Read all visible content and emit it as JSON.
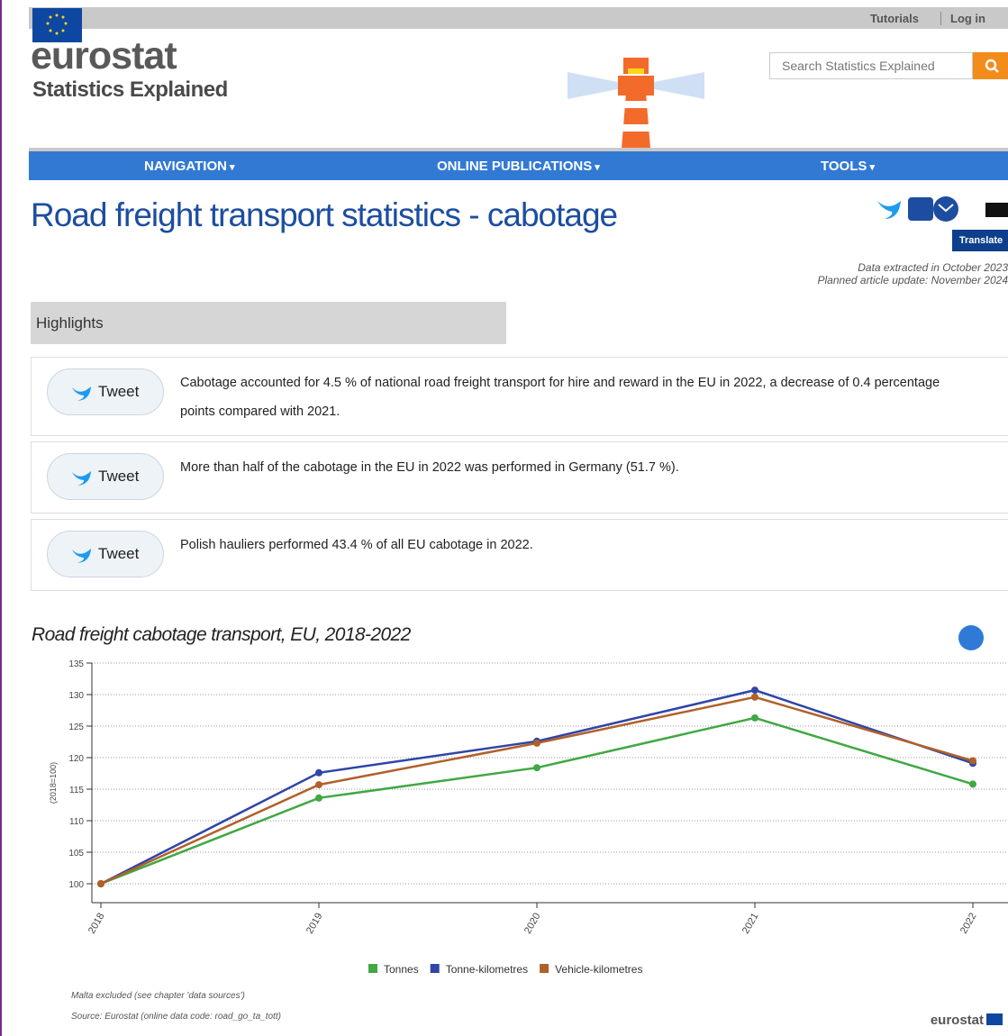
{
  "header": {
    "top_links": [
      "Tutorials",
      "Log in"
    ],
    "logo": "eurostat",
    "subtitle": "Statistics Explained",
    "search_placeholder": "Search Statistics Explained"
  },
  "nav": [
    "NAVIGATION",
    "ONLINE PUBLICATIONS",
    "TOOLS"
  ],
  "article": {
    "title": "Road freight transport statistics - cabotage",
    "translate": "Translate",
    "meta": [
      "Data extracted in October 2023",
      "Planned article update: November 2024"
    ]
  },
  "highlights": {
    "heading": "Highlights",
    "tweet": "Tweet",
    "items": [
      "Cabotage accounted for 4.5 % of national road freight transport for hire and reward in the EU in 2022, a decrease of 0.4 percentage points compared with 2021.",
      "More than half of the cabotage in the EU in 2022 was performed in Germany (51.7 %).",
      "Polish hauliers performed 43.4 % of all EU cabotage in 2022."
    ]
  },
  "chart_data": {
    "type": "line",
    "title": "Road freight cabotage transport, EU, 2018-2022",
    "y_label": "(2018=100)",
    "categories": [
      "2018",
      "2019",
      "2020",
      "2021",
      "2022"
    ],
    "series": [
      {
        "name": "Tonnes",
        "color": "#41a843",
        "values": [
          100,
          113.6,
          118.4,
          126.3,
          115.8
        ]
      },
      {
        "name": "Tonne-kilometres",
        "color": "#2f45a8",
        "values": [
          100,
          117.6,
          122.6,
          130.7,
          119.1
        ]
      },
      {
        "name": "Vehicle-kilometres",
        "color": "#b1602a",
        "values": [
          100,
          115.7,
          122.3,
          129.6,
          119.5
        ]
      }
    ],
    "ylim": [
      97,
      135
    ],
    "yticks": [
      100,
      105,
      110,
      115,
      120,
      125,
      130,
      135
    ],
    "grid": true,
    "legend": "bottom",
    "notes": [
      "Malta excluded (see chapter 'data sources')",
      "Source: Eurostat (online data code: road_go_ta_tott)"
    ],
    "footer": "eurostat"
  }
}
